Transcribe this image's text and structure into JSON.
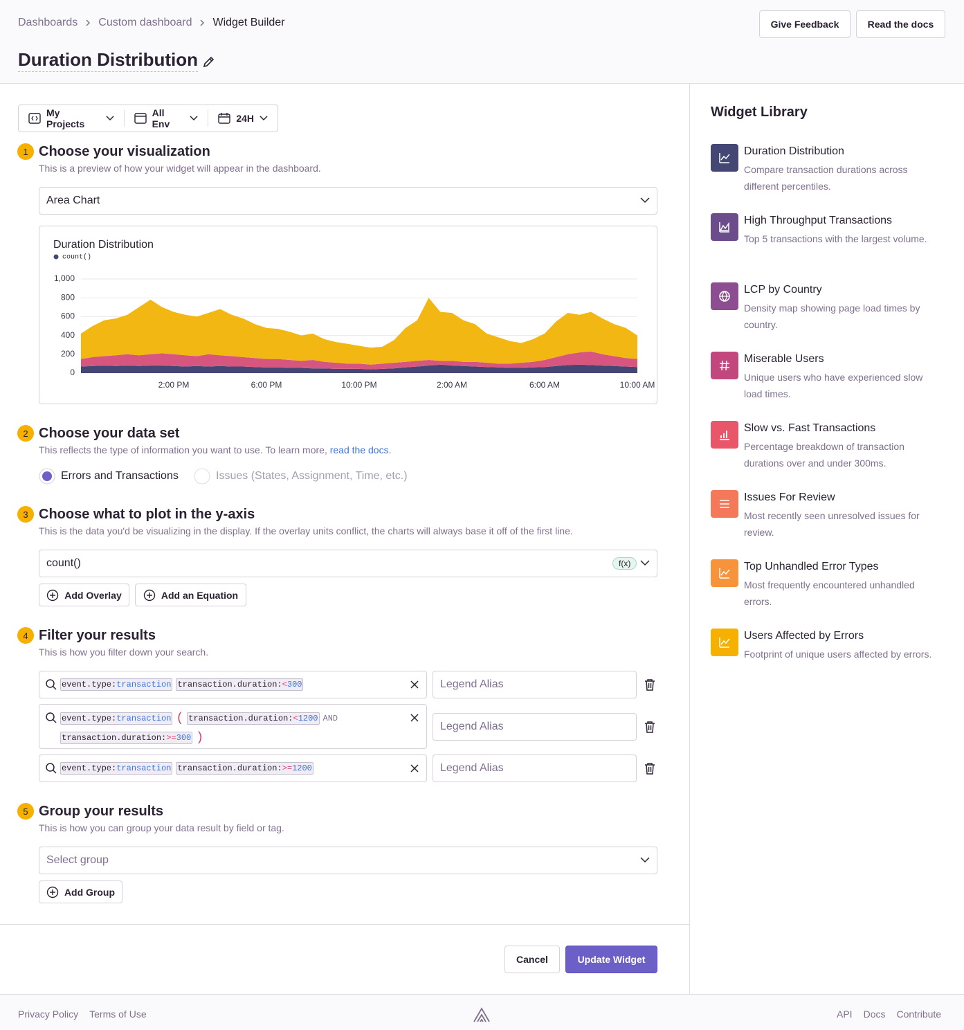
{
  "breadcrumbs": [
    "Dashboards",
    "Custom dashboard",
    "Widget Builder"
  ],
  "header": {
    "title": "Duration Distribution",
    "buttons": [
      "Give Feedback",
      "Read the docs"
    ]
  },
  "page_filters": [
    "My Projects",
    "All Env",
    "24H"
  ],
  "steps": [
    {
      "number": "1",
      "title": "Choose your visualization",
      "description": "This is a preview of how your widget will appear in the dashboard.",
      "select": "Area Chart"
    },
    {
      "number": "2",
      "title": "Choose your data set",
      "description": "This reflects the type of information you want to use. To learn more, ",
      "link": "read the docs",
      "description_end": ".",
      "options": [
        "Errors and Transactions",
        "Issues (States, Assignment, Time, etc.)"
      ]
    },
    {
      "number": "3",
      "title": "Choose what to plot in the y-axis",
      "description": "This is the data you'd be visualizing in the display. If the overlay units conflict, the charts will always base it off of the first line.",
      "field": "count()",
      "badge": "f(x)",
      "buttons": [
        "Add Overlay",
        "Add an Equation"
      ]
    },
    {
      "number": "4",
      "title": "Filter your results",
      "description": "This is how you filter down your search.",
      "alias_placeholder": "Legend Alias",
      "queries": [
        [
          {
            "key": "event.type",
            "op": ":",
            "value": "transaction"
          },
          {
            "key": "transaction.duration",
            "op": ":",
            "cmp": "<",
            "value": "300"
          }
        ],
        [
          {
            "key": "event.type",
            "op": ":",
            "value": "transaction"
          },
          "(",
          {
            "key": "transaction.duration",
            "op": ":",
            "cmp": "<",
            "value": "1200"
          },
          "AND",
          {
            "key": "transaction.duration",
            "op": ":",
            "cmp": ">=",
            "value": "300"
          },
          ")"
        ],
        [
          {
            "key": "event.type",
            "op": ":",
            "value": "transaction"
          },
          {
            "key": "transaction.duration",
            "op": ":",
            "cmp": ">=",
            "value": "1200"
          }
        ]
      ]
    },
    {
      "number": "5",
      "title": "Group your results",
      "description": "This is how you can group your data result by field or tag.",
      "select": "Select group",
      "button": "Add Group"
    }
  ],
  "actions": [
    "Cancel",
    "Update Widget"
  ],
  "library": {
    "title": "Widget Library",
    "items": [
      {
        "title": "Duration Distribution",
        "description": "Compare transaction durations across different percentiles.",
        "color": "#444674"
      },
      {
        "title": "High Throughput Transactions",
        "description": "Top 5 transactions with the largest volume.",
        "color": "#6c4d8c"
      },
      {
        "title": "LCP by Country",
        "description": "Density map showing page load times by country.",
        "color": "#8c4d91"
      },
      {
        "title": "Miserable Users",
        "description": "Unique users who have experienced slow load times.",
        "color": "#c2477c"
      },
      {
        "title": "Slow vs. Fast Transactions",
        "description": "Percentage breakdown of transaction durations over and under 300ms.",
        "color": "#e9566a"
      },
      {
        "title": "Issues For Review",
        "description": "Most recently seen unresolved issues for review.",
        "color": "#f4795b"
      },
      {
        "title": "Top Unhandled Error Types",
        "description": "Most frequently encountered unhandled errors.",
        "color": "#f7943b"
      },
      {
        "title": "Users Affected by Errors",
        "description": "Footprint of unique users affected by errors.",
        "color": "#f5b000"
      }
    ]
  },
  "footer": {
    "left": [
      "Privacy Policy",
      "Terms of Use"
    ],
    "right": [
      "API",
      "Docs",
      "Contribute"
    ]
  },
  "chart_data": {
    "type": "area",
    "stacked": true,
    "title": "Duration Distribution",
    "categories": [
      null,
      null,
      null,
      null,
      null,
      null,
      null,
      null,
      "2:00 PM",
      null,
      null,
      null,
      null,
      null,
      null,
      null,
      "6:00 PM",
      null,
      null,
      null,
      null,
      null,
      null,
      null,
      "10:00 PM",
      null,
      null,
      null,
      null,
      null,
      null,
      null,
      "2:00 AM",
      null,
      null,
      null,
      null,
      null,
      null,
      null,
      "6:00 AM",
      null,
      null,
      null,
      null,
      null,
      null,
      null,
      "10:00 AM"
    ],
    "series": [
      {
        "name": "count()",
        "color": "#444674",
        "values": [
          70,
          75,
          80,
          75,
          80,
          75,
          80,
          80,
          75,
          70,
          75,
          70,
          75,
          70,
          70,
          65,
          60,
          60,
          55,
          55,
          50,
          50,
          45,
          45,
          45,
          40,
          45,
          50,
          60,
          70,
          80,
          90,
          80,
          75,
          70,
          65,
          60,
          55,
          55,
          60,
          65,
          75,
          85,
          90,
          85,
          80,
          75,
          70,
          65
        ]
      },
      {
        "color": "#d6567f",
        "values": [
          80,
          95,
          100,
          115,
          120,
          115,
          120,
          130,
          125,
          120,
          105,
          130,
          115,
          110,
          100,
          95,
          90,
          90,
          85,
          75,
          90,
          70,
          65,
          55,
          55,
          50,
          55,
          60,
          60,
          60,
          60,
          40,
          50,
          45,
          50,
          45,
          40,
          45,
          55,
          60,
          75,
          95,
          115,
          130,
          145,
          120,
          105,
          90,
          85
        ]
      },
      {
        "color": "#f2b712",
        "values": [
          270,
          330,
          380,
          390,
          420,
          510,
          580,
          490,
          450,
          430,
          420,
          440,
          490,
          440,
          410,
          360,
          330,
          320,
          300,
          270,
          280,
          240,
          220,
          210,
          190,
          180,
          180,
          240,
          360,
          430,
          660,
          520,
          510,
          440,
          400,
          310,
          280,
          240,
          210,
          240,
          280,
          380,
          440,
          400,
          420,
          380,
          340,
          320,
          250
        ]
      }
    ],
    "ylim": [
      0,
      1000
    ],
    "yticks": [
      0,
      200,
      400,
      600,
      800,
      {
        "value": 1000,
        "label": "1,000"
      }
    ],
    "grid": true
  }
}
